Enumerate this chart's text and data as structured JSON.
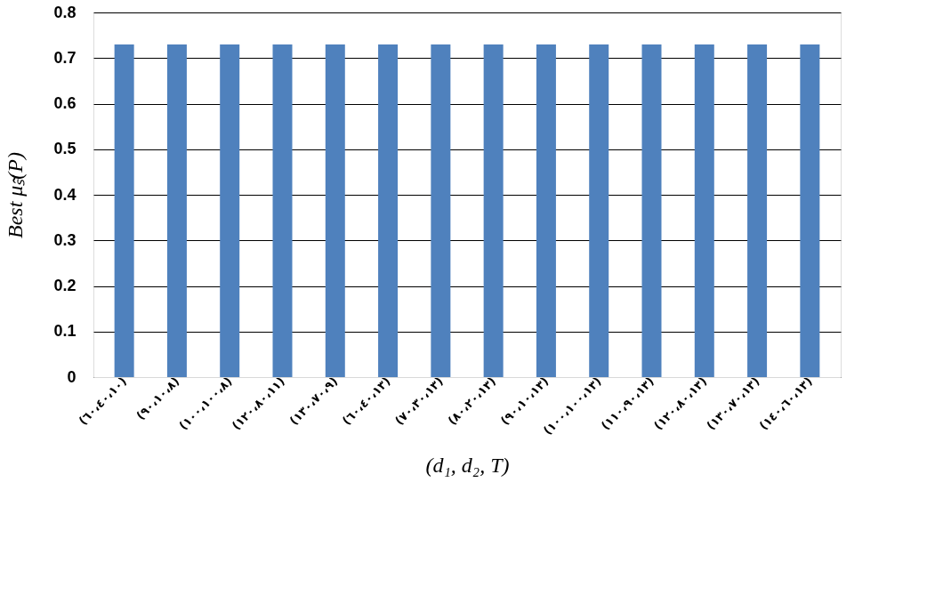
{
  "chart_data": {
    "type": "bar",
    "xlabel": "(d₁, d₂, T)",
    "ylabel": "Best μₛ̃(P)",
    "categories": [
      "(٦٠،٤٠،١٠)",
      "(٩٠،١٠،٨)",
      "(١٠٠،١٠٠،٨)",
      "(١٢٠،٨٠،١١)",
      "(١٣٠،٧٠،٩)",
      "(٦٠،٤٠،١٣)",
      "(٧٠،٣٠،١٣)",
      "(٨٠،٢٠،١٣)",
      "(٩٠،١٠،١٣)",
      "(١٠٠،١٠٠،١٣)",
      "(١١٠،٩٠،١٣)",
      "(١٢٠،٨٠،١٣)",
      "(١٣٠،٧٠،١٣)",
      "(١٤٠،٦٠،١٣)"
    ],
    "values": [
      0.73,
      0.73,
      0.73,
      0.73,
      0.73,
      0.73,
      0.73,
      0.73,
      0.73,
      0.73,
      0.73,
      0.73,
      0.73,
      0.73
    ],
    "color": "#4f81bd",
    "ylim": [
      0,
      0.8
    ],
    "yticks": [
      0,
      0.1,
      0.2,
      0.3,
      0.4,
      0.5,
      0.6,
      0.7,
      0.8
    ],
    "grid": "y"
  }
}
